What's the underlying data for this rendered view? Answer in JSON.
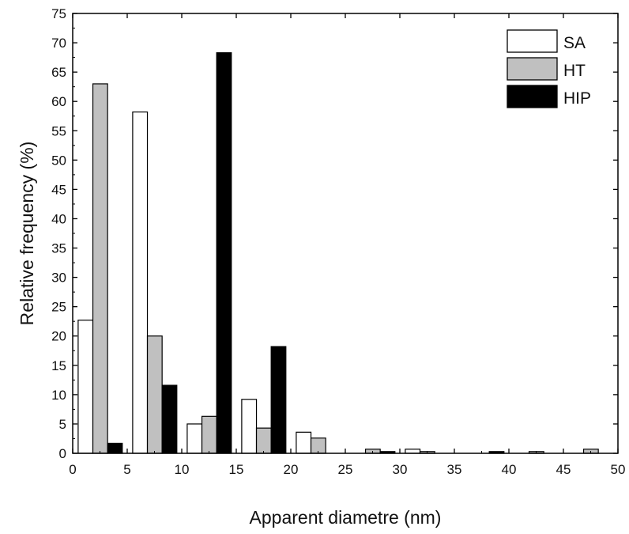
{
  "chart_data": {
    "type": "bar",
    "title": "",
    "xlabel": "Apparent diametre (nm)",
    "ylabel": "Relative frequency (%)",
    "xlim": [
      0,
      50
    ],
    "ylim": [
      0,
      75
    ],
    "xticks": [
      "0",
      "5",
      "10",
      "15",
      "20",
      "25",
      "30",
      "35",
      "40",
      "45",
      "50"
    ],
    "yticks": [
      "0",
      "5",
      "10",
      "15",
      "20",
      "25",
      "30",
      "35",
      "40",
      "45",
      "50",
      "55",
      "60",
      "65",
      "70",
      "75"
    ],
    "grid": false,
    "legend_position": "top-right",
    "bin_width": 5,
    "bin_starts": [
      0,
      5,
      10,
      15,
      20,
      25,
      30,
      35,
      40,
      45
    ],
    "series": [
      {
        "name": "SA",
        "color": "#ffffff",
        "values": [
          22.7,
          58.2,
          5.0,
          9.2,
          3.6,
          0.0,
          0.7,
          0.0,
          0.0,
          0.0
        ]
      },
      {
        "name": "HT",
        "color": "#c0c0c0",
        "values": [
          63.0,
          20.0,
          6.3,
          4.3,
          2.6,
          0.7,
          0.3,
          0.0,
          0.3,
          0.7
        ]
      },
      {
        "name": "HIP",
        "color": "#000000",
        "values": [
          1.7,
          11.6,
          68.3,
          18.2,
          0.0,
          0.3,
          0.0,
          0.3,
          0.0,
          0.0
        ]
      }
    ]
  }
}
